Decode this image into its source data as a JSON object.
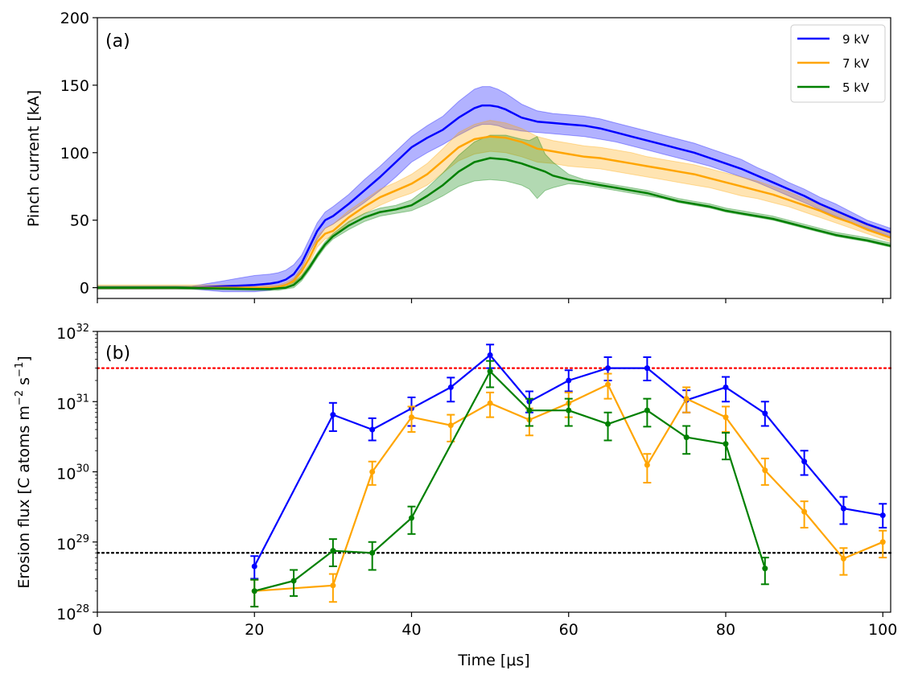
{
  "chart_data": [
    {
      "type": "line",
      "panel_label": "(a)",
      "ylabel": "Pinch current [kA]",
      "xlim": [
        0,
        101
      ],
      "ylim": [
        -8,
        200
      ],
      "x_ticks": [
        0,
        20,
        40,
        60,
        80,
        100
      ],
      "y_ticks": [
        0,
        50,
        100,
        150,
        200
      ],
      "y_tick_labels": [
        "0",
        "50",
        "100",
        "150",
        "200"
      ],
      "legend_position": "top-right",
      "series": [
        {
          "name": "9 kV",
          "color": "#0000ff",
          "x": [
            0,
            10,
            12,
            14,
            16,
            18,
            20,
            22,
            23,
            24,
            25,
            26,
            27,
            28,
            29,
            30,
            32,
            34,
            36,
            38,
            40,
            42,
            44,
            46,
            48,
            49,
            50,
            51,
            52,
            54,
            56,
            58,
            60,
            62,
            64,
            66,
            68,
            70,
            72,
            74,
            76,
            78,
            80,
            82,
            84,
            86,
            88,
            90,
            92,
            94,
            96,
            98,
            101
          ],
          "mean": [
            0,
            0,
            0,
            0.5,
            1,
            1.5,
            2,
            3,
            4,
            6,
            10,
            18,
            30,
            42,
            50,
            53,
            62,
            72,
            82,
            93,
            104,
            111,
            117,
            126,
            133,
            135,
            135,
            134,
            132,
            126,
            123,
            122,
            121,
            120,
            118,
            115,
            112,
            109,
            106,
            103,
            100,
            96,
            92,
            88,
            83,
            78,
            73,
            68,
            62,
            57,
            52,
            47,
            41
          ],
          "low": [
            -1,
            -1,
            -1,
            -2,
            -3,
            -3,
            -3,
            -2,
            0,
            2,
            6,
            14,
            26,
            36,
            44,
            47,
            55,
            63,
            72,
            82,
            93,
            100,
            106,
            113,
            119,
            121,
            121,
            120,
            118,
            116,
            115,
            114,
            113,
            112,
            110,
            108,
            105,
            102,
            99,
            96,
            93,
            90,
            86,
            82,
            78,
            73,
            68,
            63,
            58,
            53,
            48,
            44,
            38
          ],
          "high": [
            1,
            1,
            1,
            3,
            5,
            7,
            9,
            10,
            11,
            13,
            17,
            24,
            36,
            48,
            56,
            60,
            69,
            80,
            90,
            101,
            112,
            120,
            127,
            138,
            147,
            149,
            149,
            147,
            144,
            136,
            131,
            129,
            128,
            127,
            125,
            122,
            119,
            116,
            113,
            110,
            107,
            103,
            99,
            95,
            89,
            84,
            78,
            73,
            67,
            62,
            56,
            50,
            44
          ]
        },
        {
          "name": "7 kV",
          "color": "#ffa500",
          "x": [
            0,
            10,
            20,
            22,
            23,
            24,
            25,
            26,
            27,
            28,
            29,
            30,
            32,
            34,
            36,
            38,
            40,
            42,
            44,
            46,
            48,
            50,
            52,
            54,
            56,
            58,
            60,
            62,
            64,
            66,
            68,
            70,
            72,
            74,
            76,
            78,
            80,
            82,
            84,
            86,
            88,
            90,
            92,
            94,
            96,
            98,
            101
          ],
          "mean": [
            0,
            0,
            0,
            0,
            0.5,
            2,
            5,
            12,
            22,
            34,
            40,
            42,
            52,
            60,
            67,
            72,
            77,
            84,
            94,
            104,
            110,
            112,
            111,
            108,
            103,
            101,
            99,
            97,
            96,
            94,
            92,
            90,
            88,
            86,
            84,
            81,
            78,
            75,
            72,
            69,
            65,
            61,
            57,
            52,
            48,
            43,
            37
          ],
          "low": [
            -1,
            -1,
            -1,
            -1,
            -1,
            0,
            3,
            9,
            18,
            30,
            36,
            38,
            48,
            55,
            61,
            66,
            70,
            76,
            85,
            94,
            99,
            101,
            100,
            97,
            93,
            92,
            90,
            89,
            88,
            86,
            84,
            82,
            80,
            78,
            76,
            74,
            71,
            68,
            66,
            63,
            60,
            56,
            52,
            48,
            44,
            40,
            34
          ],
          "high": [
            2,
            2,
            2,
            2,
            2,
            4,
            7,
            15,
            26,
            38,
            44,
            47,
            57,
            65,
            73,
            78,
            84,
            92,
            103,
            115,
            121,
            124,
            122,
            118,
            112,
            109,
            107,
            105,
            104,
            102,
            100,
            97,
            95,
            93,
            91,
            88,
            85,
            82,
            79,
            75,
            71,
            66,
            62,
            57,
            52,
            46,
            40
          ]
        },
        {
          "name": "5 kV",
          "color": "#008000",
          "x": [
            0,
            10,
            20,
            22,
            23,
            24,
            25,
            26,
            27,
            28,
            29,
            30,
            32,
            34,
            36,
            38,
            40,
            42,
            44,
            46,
            48,
            50,
            52,
            54,
            55,
            56,
            57,
            58,
            60,
            62,
            64,
            66,
            68,
            70,
            72,
            74,
            76,
            78,
            80,
            82,
            84,
            86,
            88,
            90,
            92,
            94,
            96,
            98,
            101
          ],
          "mean": [
            0,
            0,
            -1,
            -1,
            -0.5,
            0,
            2,
            7,
            15,
            24,
            32,
            38,
            46,
            52,
            56,
            58,
            61,
            68,
            76,
            86,
            93,
            96,
            95,
            92,
            90,
            88,
            86,
            83,
            80,
            78,
            76,
            74,
            72,
            70,
            67,
            64,
            62,
            60,
            57,
            55,
            53,
            51,
            48,
            45,
            42,
            39,
            37,
            35,
            31
          ],
          "low": [
            -1,
            -1,
            -2,
            -2,
            -2,
            -1,
            0,
            5,
            13,
            22,
            30,
            36,
            43,
            49,
            53,
            55,
            57,
            62,
            68,
            75,
            79,
            80,
            79,
            76,
            73,
            66,
            72,
            74,
            77,
            76,
            74,
            72,
            70,
            68,
            66,
            63,
            61,
            59,
            56,
            54,
            52,
            50,
            47,
            44,
            41,
            38,
            36,
            34,
            30
          ],
          "high": [
            1,
            1,
            0,
            0,
            1,
            2,
            4,
            9,
            17,
            26,
            34,
            40,
            49,
            55,
            59,
            61,
            65,
            74,
            85,
            98,
            108,
            113,
            113,
            110,
            109,
            112,
            99,
            93,
            84,
            80,
            78,
            76,
            74,
            72,
            69,
            66,
            64,
            62,
            59,
            57,
            55,
            53,
            50,
            47,
            44,
            41,
            39,
            37,
            33
          ]
        }
      ]
    },
    {
      "type": "line",
      "panel_label": "(b)",
      "xlabel": "Time [μs]",
      "ylabel_main": "Erosion flux [C atoms m",
      "ylabel_exp1": "−2",
      "ylabel_mid": " s",
      "ylabel_exp2": "−1",
      "ylabel_end": "]",
      "xlim": [
        0,
        101
      ],
      "ylim_log10": [
        28,
        32
      ],
      "x_ticks": [
        0,
        20,
        40,
        60,
        80,
        100
      ],
      "x_tick_labels": [
        "0",
        "20",
        "40",
        "60",
        "80",
        "100"
      ],
      "y_ticks_log10": [
        28,
        29,
        30,
        31,
        32
      ],
      "y_tick_base": "10",
      "y_tick_exponents": [
        "28",
        "29",
        "30",
        "31",
        "32"
      ],
      "reference_lines": [
        {
          "value": 3e+31,
          "color": "#ff0000",
          "style": "dotted"
        },
        {
          "value": 7e+28,
          "color": "#000000",
          "style": "dotted"
        }
      ],
      "series": [
        {
          "name": "9 kV",
          "color": "#0000ff",
          "x": [
            20,
            30,
            35,
            40,
            45,
            50,
            55,
            60,
            65,
            70,
            75,
            80,
            85,
            90,
            95,
            100
          ],
          "y": [
            4.5e+28,
            6.5e+30,
            4e+30,
            8e+30,
            1.6e+31,
            4.6e+31,
            1e+31,
            2e+31,
            3e+31,
            3e+31,
            1.05e+31,
            1.6e+31,
            6.8e+30,
            1.4e+30,
            3e+29,
            2.4e+29
          ],
          "err_low": [
            3e+28,
            3.8e+30,
            2.8e+30,
            4.5e+30,
            1e+31,
            3e+31,
            7e+30,
            1.4e+31,
            2e+31,
            2e+31,
            7e+30,
            1e+31,
            4.5e+30,
            9e+29,
            1.8e+29,
            1.6e+29
          ],
          "err_high": [
            6.3e+28,
            9.6e+30,
            5.8e+30,
            1.15e+31,
            2.2e+31,
            6.5e+31,
            1.4e+31,
            2.8e+31,
            4.3e+31,
            4.3e+31,
            1.45e+31,
            2.25e+31,
            1e+31,
            2e+30,
            4.4e+29,
            3.5e+29
          ]
        },
        {
          "name": "7 kV",
          "color": "#ffa500",
          "x": [
            20,
            30,
            35,
            40,
            45,
            50,
            55,
            60,
            65,
            70,
            75,
            80,
            85,
            90,
            95,
            100
          ],
          "y": [
            2e+28,
            2.4e+28,
            1e+30,
            6e+30,
            4.6e+30,
            9.5e+30,
            5.5e+30,
            9.5e+30,
            1.75e+31,
            1.25e+30,
            1.1e+31,
            6e+30,
            1.05e+30,
            2.7e+29,
            5.8e+28,
            1e+29
          ],
          "err_low": [
            1.2e+28,
            1.4e+28,
            6.5e+29,
            3.7e+30,
            2.7e+30,
            6e+30,
            3.3e+30,
            6e+30,
            1.1e+31,
            7e+29,
            7e+30,
            3.7e+30,
            6.5e+29,
            1.6e+29,
            3.4e+28,
            6e+28
          ],
          "err_high": [
            2.9e+28,
            3.5e+28,
            1.4e+30,
            8.5e+30,
            6.5e+30,
            1.35e+31,
            8e+30,
            1.35e+31,
            2.5e+31,
            1.8e+30,
            1.6e+31,
            8.5e+30,
            1.55e+30,
            3.8e+29,
            8.2e+28,
            1.45e+29
          ]
        },
        {
          "name": "5 kV",
          "color": "#008000",
          "x": [
            20,
            25,
            30,
            35,
            40,
            50,
            55,
            60,
            65,
            70,
            75,
            80,
            85
          ],
          "y": [
            2e+28,
            2.8e+28,
            7.5e+28,
            7e+28,
            2.2e+29,
            2.7e+31,
            7.5e+30,
            7.5e+30,
            4.8e+30,
            7.5e+30,
            3.1e+30,
            2.5e+30,
            4.2e+28
          ],
          "err_low": [
            1.2e+28,
            1.7e+28,
            4.5e+28,
            4e+28,
            1.3e+29,
            1.6e+31,
            4.5e+30,
            4.5e+30,
            2.8e+30,
            4.4e+30,
            1.8e+30,
            1.5e+30,
            2.5e+28
          ],
          "err_high": [
            2.9e+28,
            4e+28,
            1.1e+29,
            1e+29,
            3.2e+29,
            3.8e+31,
            1.1e+31,
            1.1e+31,
            7e+30,
            1.1e+31,
            4.5e+30,
            3.6e+30,
            6e+28
          ]
        }
      ]
    }
  ]
}
